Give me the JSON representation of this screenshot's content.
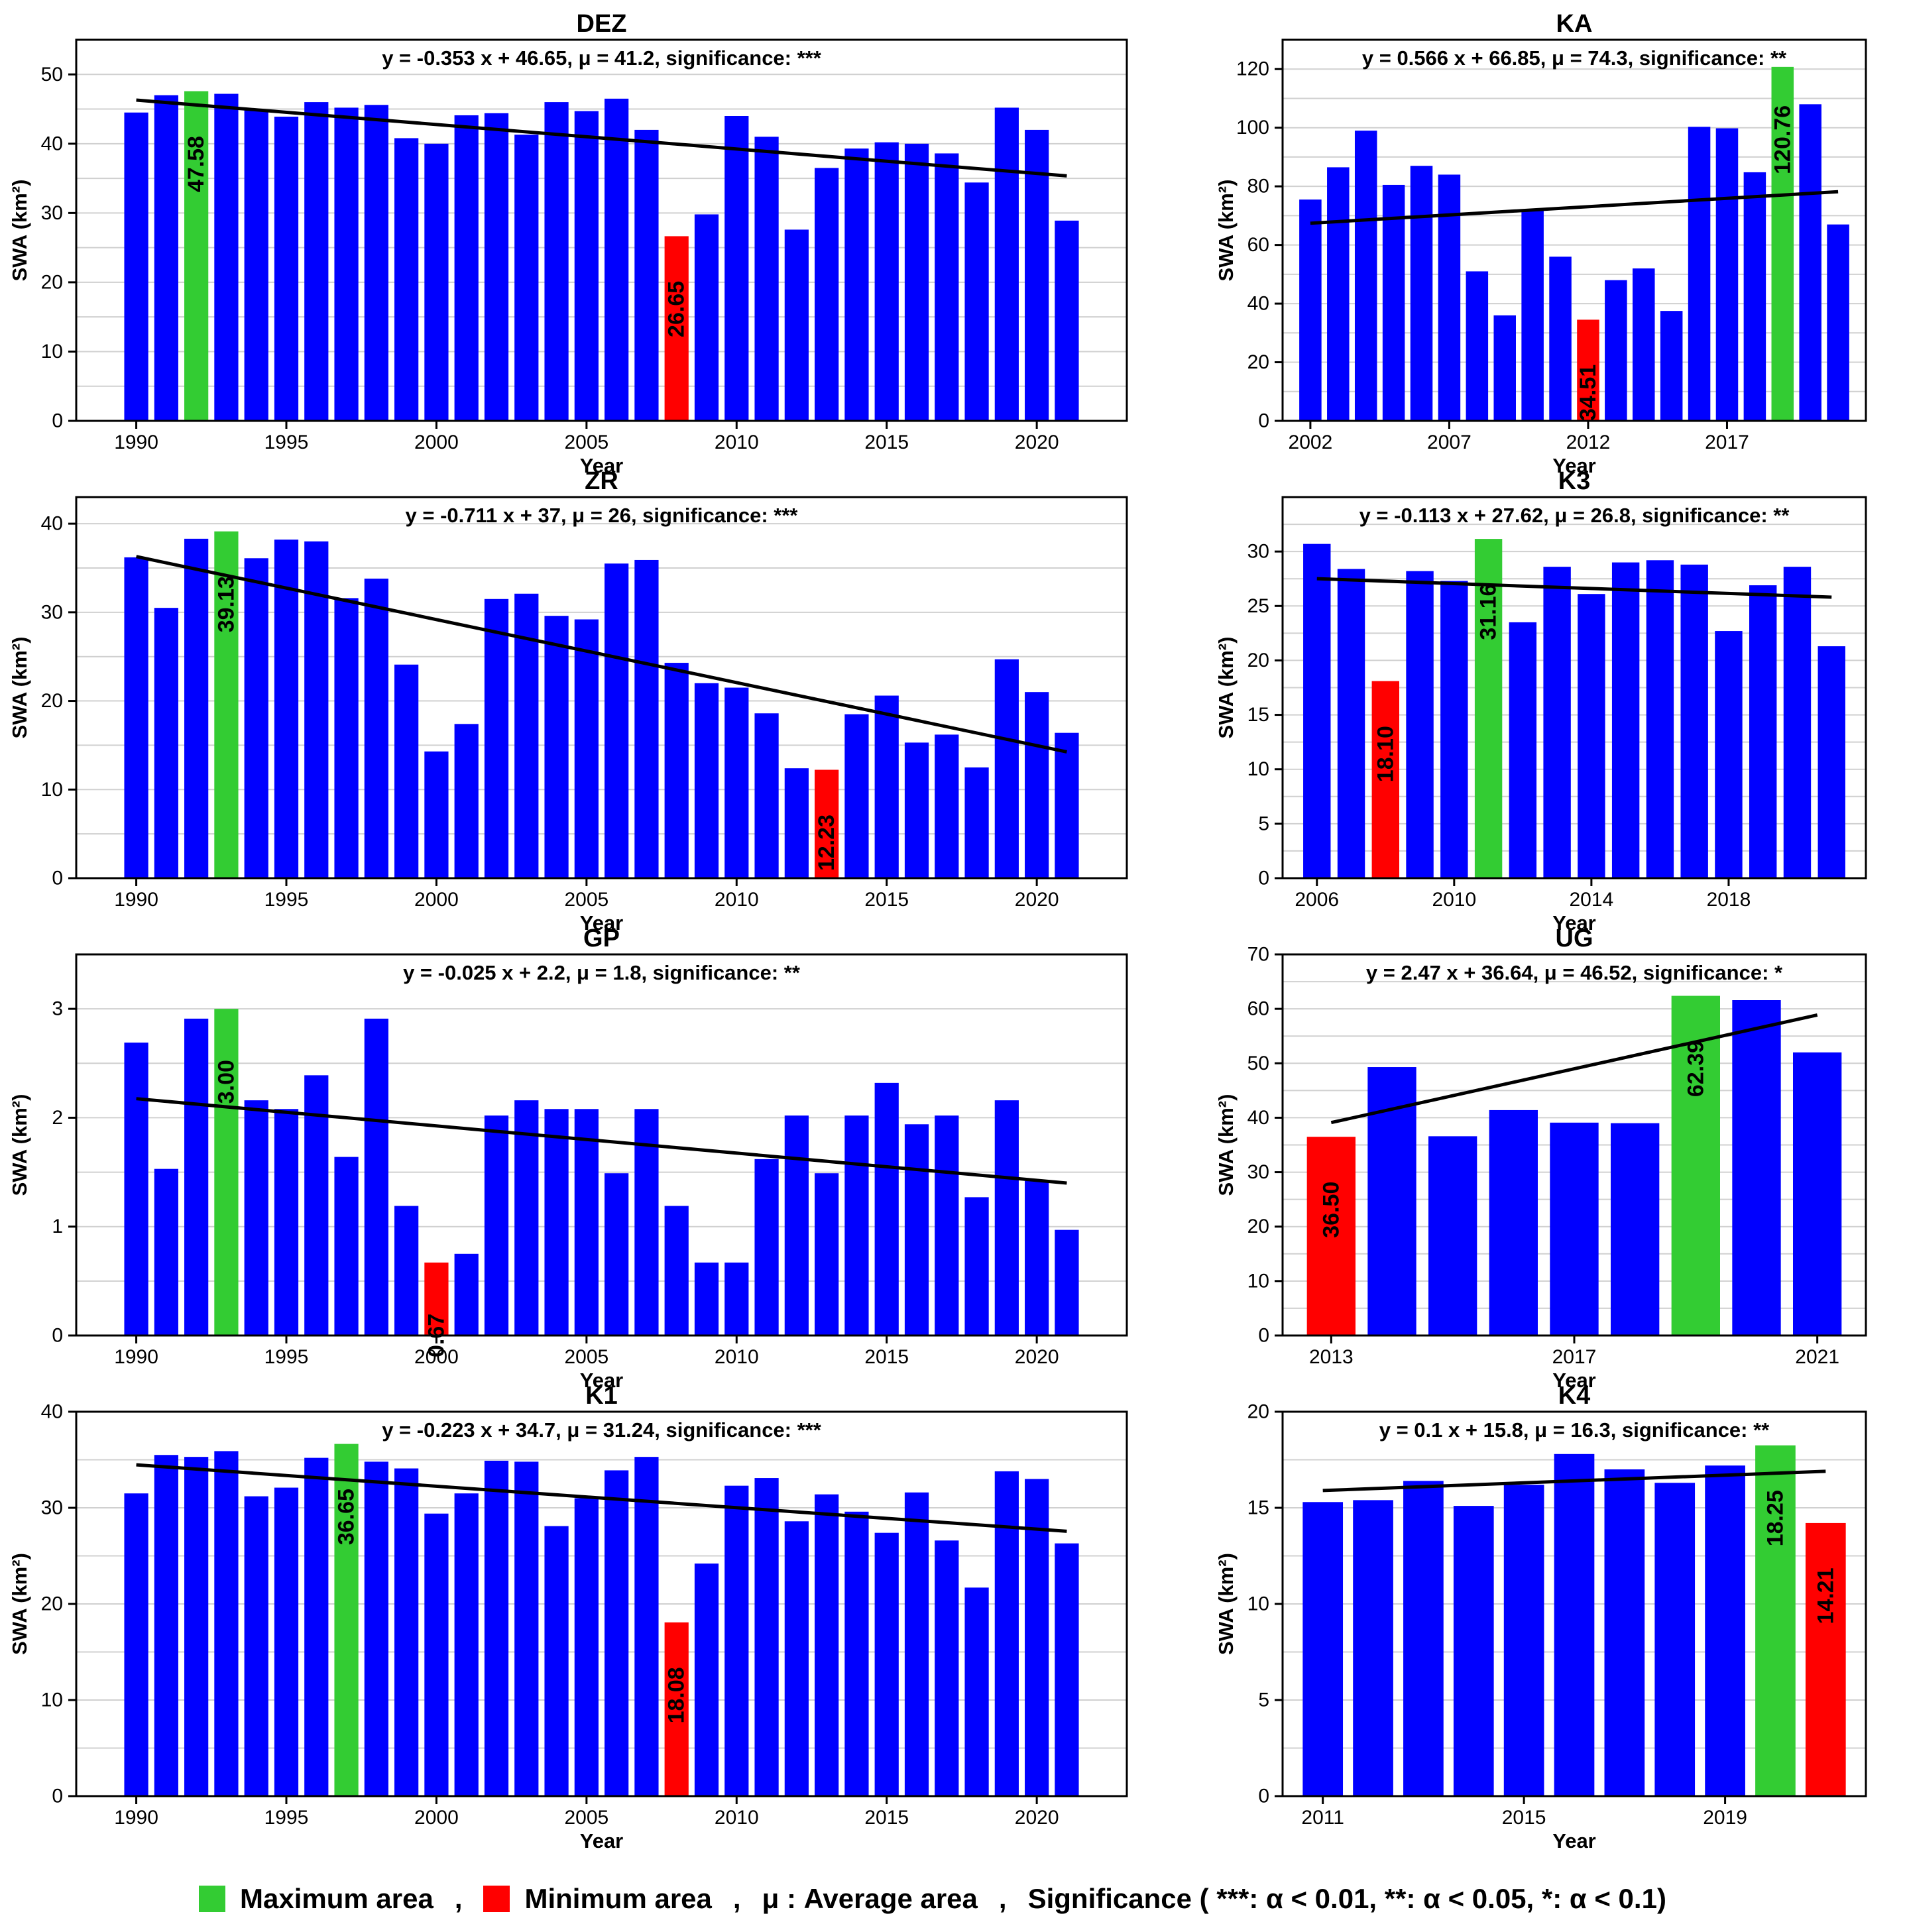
{
  "legend": {
    "max_label": "Maximum area",
    "min_label": "Minimum area",
    "avg_label": "μ : Average area",
    "sig_label": "Significance ( ***: α < 0.01, **: α < 0.05, *: α < 0.1)",
    "sep": ",",
    "max_color": "#33cc33",
    "min_color": "#ff0000"
  },
  "colors": {
    "bar": "#0000ff",
    "max": "#33cc33",
    "min": "#ff0000",
    "trend": "#000000"
  },
  "chart_data": [
    {
      "type": "bar",
      "title": "DEZ",
      "equation": "y = -0.353 x + 46.65, μ = 41.2, significance: ***",
      "xlabel": "Year",
      "ylabel": "SWA (km²)",
      "x": [
        1990,
        1991,
        1992,
        1993,
        1994,
        1995,
        1996,
        1997,
        1998,
        1999,
        2000,
        2001,
        2002,
        2003,
        2004,
        2005,
        2006,
        2007,
        2008,
        2009,
        2010,
        2011,
        2012,
        2013,
        2014,
        2015,
        2016,
        2017,
        2018,
        2019,
        2020,
        2021
      ],
      "values": [
        44.5,
        47.0,
        47.58,
        47.2,
        44.8,
        43.9,
        46.0,
        45.2,
        45.6,
        40.8,
        40.0,
        44.1,
        44.4,
        41.3,
        46.0,
        44.7,
        46.5,
        42.0,
        26.65,
        29.8,
        44.0,
        41.0,
        27.6,
        36.5,
        39.3,
        40.2,
        40.0,
        38.6,
        34.4,
        45.2,
        42.0,
        28.9
      ],
      "max_index": 2,
      "min_index": 18,
      "max_label": "47.58",
      "min_label": "26.65",
      "trend": {
        "slope": -0.353,
        "intercept": 46.65
      },
      "ylim": [
        0,
        55
      ],
      "yticks": [
        0,
        10,
        20,
        30,
        40,
        50
      ],
      "xticks": [
        1990,
        1995,
        2000,
        2005,
        2010,
        2015,
        2020
      ],
      "xlim": [
        1988,
        2023
      ],
      "grid": true
    },
    {
      "type": "bar",
      "title": "KA",
      "equation": "y = 0.566 x + 66.85, μ = 74.3, significance: **",
      "xlabel": "Year",
      "ylabel": "SWA (km²)",
      "x": [
        2002,
        2003,
        2004,
        2005,
        2006,
        2007,
        2008,
        2009,
        2010,
        2011,
        2012,
        2013,
        2014,
        2015,
        2016,
        2017,
        2018,
        2019,
        2020,
        2021
      ],
      "values": [
        75.5,
        86.5,
        99.0,
        80.5,
        87.0,
        84.0,
        51.0,
        36.0,
        72.0,
        56.0,
        34.51,
        48.0,
        52.0,
        37.5,
        100.3,
        99.8,
        84.8,
        120.76,
        108.0,
        67.0
      ],
      "max_index": 17,
      "min_index": 10,
      "max_label": "120.76",
      "min_label": "34.51",
      "trend": {
        "slope": 0.566,
        "intercept": 66.85
      },
      "ylim": [
        0,
        130
      ],
      "yticks": [
        0,
        20,
        40,
        60,
        80,
        100,
        120
      ],
      "xticks": [
        2002,
        2007,
        2012,
        2017
      ],
      "xlim": [
        2001,
        2022.0
      ],
      "grid": true
    },
    {
      "type": "bar",
      "title": "ZR",
      "equation": "y = -0.711 x + 37, μ = 26, significance: ***",
      "xlabel": "Year",
      "ylabel": "SWA (km²)",
      "x": [
        1990,
        1991,
        1992,
        1993,
        1994,
        1995,
        1996,
        1997,
        1998,
        1999,
        2000,
        2001,
        2002,
        2003,
        2004,
        2005,
        2006,
        2007,
        2008,
        2009,
        2010,
        2011,
        2012,
        2013,
        2014,
        2015,
        2016,
        2017,
        2018,
        2019,
        2020,
        2021
      ],
      "values": [
        36.2,
        30.5,
        38.3,
        39.13,
        36.1,
        38.2,
        38.0,
        31.6,
        33.8,
        24.1,
        14.3,
        17.4,
        31.5,
        32.1,
        29.6,
        29.2,
        35.5,
        35.9,
        24.3,
        22.0,
        21.5,
        18.6,
        12.4,
        12.23,
        18.5,
        20.6,
        15.3,
        16.2,
        12.5,
        24.7,
        21.0,
        16.4
      ],
      "max_index": 3,
      "min_index": 23,
      "max_label": "39.13",
      "min_label": "12.23",
      "trend": {
        "slope": -0.711,
        "intercept": 37
      },
      "ylim": [
        0,
        43
      ],
      "yticks": [
        0,
        10,
        20,
        30,
        40
      ],
      "xticks": [
        1990,
        1995,
        2000,
        2005,
        2010,
        2015,
        2020
      ],
      "xlim": [
        1988,
        2023
      ],
      "grid": true
    },
    {
      "type": "bar",
      "title": "K3",
      "equation": "y = -0.113 x + 27.62, μ = 26.8, significance: **",
      "xlabel": "Year",
      "ylabel": "SWA (km²)",
      "x": [
        2006,
        2007,
        2008,
        2009,
        2010,
        2011,
        2012,
        2013,
        2014,
        2015,
        2016,
        2017,
        2018,
        2019,
        2020,
        2021
      ],
      "values": [
        30.7,
        28.4,
        18.1,
        28.2,
        27.3,
        31.16,
        23.5,
        28.6,
        26.1,
        29.0,
        29.2,
        28.8,
        22.7,
        26.9,
        28.6,
        21.3
      ],
      "max_index": 5,
      "min_index": 2,
      "max_label": "31.16",
      "min_label": "18.10",
      "trend": {
        "slope": -0.113,
        "intercept": 27.62
      },
      "ylim": [
        0,
        35
      ],
      "yticks": [
        0,
        5,
        10,
        15,
        20,
        25,
        30
      ],
      "xticks": [
        2006,
        2010,
        2014,
        2018
      ],
      "xlim": [
        2005,
        2022
      ],
      "grid": true
    },
    {
      "type": "bar",
      "title": "GP",
      "equation": "y = -0.025 x + 2.2, μ = 1.8, significance: **",
      "xlabel": "Year",
      "ylabel": "SWA (km²)",
      "x": [
        1990,
        1991,
        1992,
        1993,
        1994,
        1995,
        1996,
        1997,
        1998,
        1999,
        2000,
        2001,
        2002,
        2003,
        2004,
        2005,
        2006,
        2007,
        2008,
        2009,
        2010,
        2011,
        2012,
        2013,
        2014,
        2015,
        2016,
        2017,
        2018,
        2019,
        2020,
        2021
      ],
      "values": [
        2.69,
        1.53,
        2.91,
        3.0,
        2.16,
        2.08,
        2.39,
        1.64,
        2.91,
        1.19,
        0.67,
        0.75,
        2.02,
        2.16,
        2.08,
        2.08,
        1.49,
        2.08,
        1.19,
        0.67,
        0.67,
        1.62,
        2.02,
        1.49,
        2.02,
        2.32,
        1.94,
        2.02,
        1.27,
        2.16,
        1.42,
        0.97
      ],
      "max_index": 3,
      "min_index": 10,
      "max_label": "3.00",
      "min_label": "0.67",
      "trend": {
        "slope": -0.025,
        "intercept": 2.2
      },
      "ylim": [
        0,
        3.5
      ],
      "yticks": [
        0,
        1,
        2,
        3
      ],
      "xticks": [
        1990,
        1995,
        2000,
        2005,
        2010,
        2015,
        2020
      ],
      "xlim": [
        1988,
        2023
      ],
      "grid": true
    },
    {
      "type": "bar",
      "title": "UG",
      "equation": "y = 2.47 x + 36.64, μ = 46.52, significance: *",
      "xlabel": "Year",
      "ylabel": "SWA (km²)",
      "x": [
        2013,
        2014,
        2015,
        2016,
        2017,
        2018,
        2019,
        2020,
        2021
      ],
      "values": [
        36.5,
        49.3,
        36.6,
        41.4,
        39.1,
        39.0,
        62.39,
        61.6,
        52.0
      ],
      "max_index": 6,
      "min_index": 0,
      "max_label": "62.39",
      "min_label": "36.50",
      "trend": {
        "slope": 2.47,
        "intercept": 36.64
      },
      "ylim": [
        0,
        70
      ],
      "yticks": [
        0,
        10,
        20,
        30,
        40,
        50,
        60,
        70
      ],
      "xticks": [
        2013,
        2017,
        2021
      ],
      "xlim": [
        2012.2,
        2021.8
      ],
      "grid": true
    },
    {
      "type": "bar",
      "title": "K1",
      "equation": "y = -0.223 x + 34.7, μ = 31.24, significance: ***",
      "xlabel": "Year",
      "ylabel": "SWA (km²)",
      "x": [
        1990,
        1991,
        1992,
        1993,
        1994,
        1995,
        1996,
        1997,
        1998,
        1999,
        2000,
        2001,
        2002,
        2003,
        2004,
        2005,
        2006,
        2007,
        2008,
        2009,
        2010,
        2011,
        2012,
        2013,
        2014,
        2015,
        2016,
        2017,
        2018,
        2019,
        2020,
        2021
      ],
      "values": [
        31.5,
        35.5,
        35.3,
        35.9,
        31.2,
        32.1,
        35.2,
        36.65,
        34.8,
        34.1,
        29.4,
        31.5,
        34.9,
        34.8,
        28.1,
        31.0,
        33.9,
        35.3,
        18.08,
        24.2,
        32.3,
        33.1,
        28.6,
        31.4,
        29.6,
        27.4,
        31.6,
        26.6,
        21.7,
        33.8,
        33.0,
        26.3
      ],
      "max_index": 7,
      "min_index": 18,
      "max_label": "36.65",
      "min_label": "18.08",
      "trend": {
        "slope": -0.223,
        "intercept": 34.7
      },
      "ylim": [
        0,
        40
      ],
      "yticks": [
        0,
        10,
        20,
        30,
        40
      ],
      "xticks": [
        1990,
        1995,
        2000,
        2005,
        2010,
        2015,
        2020
      ],
      "xlim": [
        1988,
        2023
      ],
      "grid": true
    },
    {
      "type": "bar",
      "title": "K4",
      "equation": "y = 0.1 x + 15.8, μ = 16.3, significance: **",
      "xlabel": "Year",
      "ylabel": "SWA (km²)",
      "x": [
        2011,
        2012,
        2013,
        2014,
        2015,
        2016,
        2017,
        2018,
        2019,
        2020,
        2021
      ],
      "values": [
        15.3,
        15.4,
        16.4,
        15.1,
        16.2,
        17.8,
        17.0,
        16.3,
        17.2,
        18.25,
        14.21
      ],
      "max_index": 9,
      "min_index": 10,
      "max_label": "18.25",
      "min_label": "14.21",
      "trend": {
        "slope": 0.1,
        "intercept": 15.8
      },
      "ylim": [
        0,
        20
      ],
      "yticks": [
        0,
        5,
        10,
        15,
        20
      ],
      "xticks": [
        2011,
        2015,
        2019
      ],
      "xlim": [
        2010.2,
        2021.8
      ],
      "grid": true
    }
  ]
}
